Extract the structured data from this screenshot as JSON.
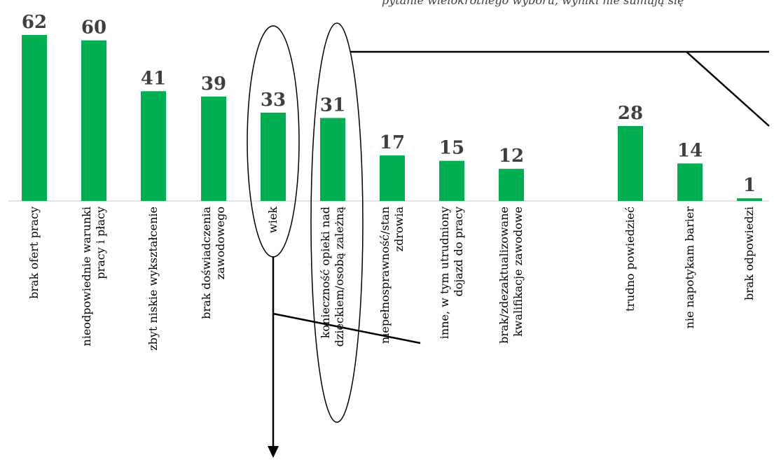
{
  "chart_data": {
    "type": "bar",
    "title": "",
    "xlabel": "",
    "ylabel": "",
    "ylim": [
      0,
      62
    ],
    "grid": false,
    "bar_color": "#00b050",
    "top_note": "pytanie wielokrotnego wyboru, wyniki nie sumują się",
    "categories": [
      "brak ofert pracy",
      "nieodpowiednie warunki pracy i płacy",
      "zbyt niskie wykształcenie",
      "brak doświadczenia zawodowego",
      "wiek",
      "konieczność opieki nad dzieckiem/osobą zależną",
      "niepełnosprawność/stan zdrowia",
      "inne, w tym utrudniony dojazd do pracy",
      "brak/zdezaktualizowane kwalifikacje zawodowe",
      "trudno powiedzieć",
      "nie napotykam barier",
      "brak odpowiedzi"
    ],
    "category_lines": [
      [
        "brak ofert pracy"
      ],
      [
        "nieodpowiednie warunki",
        "pracy i płacy"
      ],
      [
        "zbyt niskie wykształcenie"
      ],
      [
        "brak doświadczenia",
        "zawodowego"
      ],
      [
        "wiek"
      ],
      [
        "konieczność opieki nad",
        "dzieckiem/osobą zależną"
      ],
      [
        "niepełnosprawność/stan",
        "zdrowia"
      ],
      [
        "inne, w tym utrudniony",
        "dojazd do pracy"
      ],
      [
        "brak/zdezaktualizowane",
        "kwalifikacje zawodowe"
      ],
      [
        "trudno powiedzieć"
      ],
      [
        "nie napotykam barier"
      ],
      [
        "brak odpowiedzi"
      ]
    ],
    "values": [
      62,
      60,
      41,
      39,
      33,
      31,
      17,
      15,
      12,
      28,
      14,
      1
    ],
    "highlighted_categories": [
      "wiek",
      "konieczność opieki nad dzieckiem/osobą zależną"
    ]
  }
}
